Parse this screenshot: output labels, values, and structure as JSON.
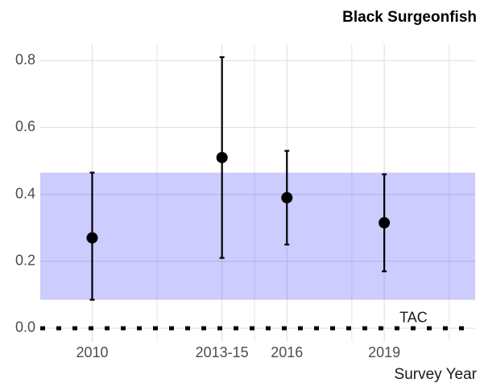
{
  "chart_data": {
    "type": "errorbar",
    "title": "Black Surgeonfish",
    "x_label": "Survey Year",
    "series": [
      {
        "color": "#000000",
        "x": [
          2010,
          2014,
          2016,
          2019
        ],
        "values": [
          0.27,
          0.51,
          0.39,
          0.315
        ],
        "lower": [
          0.085,
          0.21,
          0.25,
          0.17
        ],
        "upper": [
          0.465,
          0.81,
          0.53,
          0.46
        ]
      }
    ],
    "band": {
      "range": [
        0.085,
        0.465
      ],
      "color": "#0000ff"
    },
    "reference_line": {
      "value": 0,
      "label": "TAC",
      "label_x": 2019.9
    },
    "xlim": [
      2008.4,
      2021.8
    ],
    "xticks": [
      2010,
      {
        "value": 2014,
        "label": "2013-15"
      },
      2016,
      2019
    ],
    "x_minor_grid": [
      2012,
      2015,
      2018,
      2021
    ],
    "ylim": [
      -0.04,
      0.85
    ],
    "yticks": [
      {
        "value": 0,
        "label": "0.0"
      },
      0.2,
      0.4,
      0.6,
      0.8
    ],
    "grid": true
  }
}
